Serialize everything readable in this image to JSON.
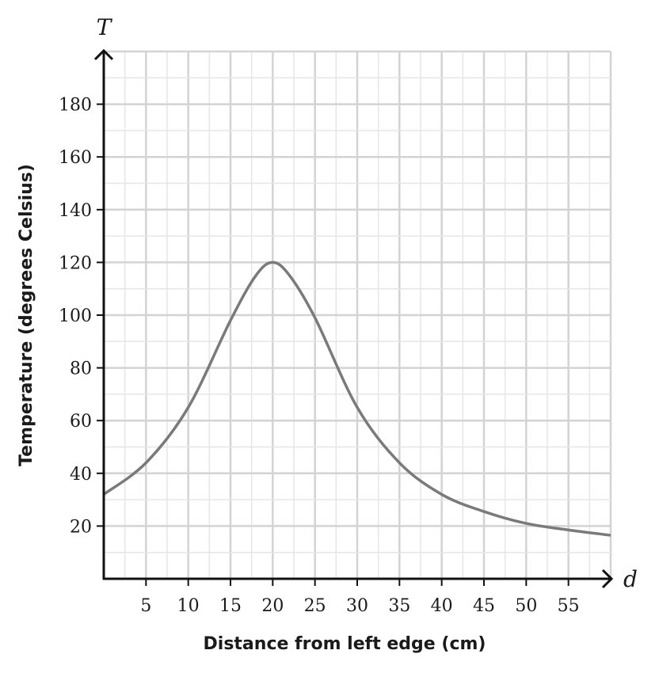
{
  "chart_data": {
    "type": "line",
    "xvar": "d",
    "yvar": "T",
    "xlabel": "Distance from left edge (cm)",
    "ylabel": "Temperature (degrees Celsius)",
    "xlim": [
      0,
      60
    ],
    "ylim": [
      0,
      200
    ],
    "xticks": [
      5,
      10,
      15,
      20,
      25,
      30,
      35,
      40,
      45,
      50,
      55
    ],
    "yticks": [
      20,
      40,
      60,
      80,
      100,
      120,
      140,
      160,
      180
    ],
    "grid": true,
    "series": [
      {
        "color": "#7a7a7a",
        "x": [
          0,
          5,
          10,
          15,
          18,
          20,
          22,
          25,
          30,
          35,
          40,
          45,
          50,
          55,
          60
        ],
        "y": [
          32,
          44,
          65,
          98,
          115,
          120,
          115,
          99,
          65,
          44,
          32,
          25.5,
          21,
          18.5,
          16.5
        ]
      }
    ]
  }
}
